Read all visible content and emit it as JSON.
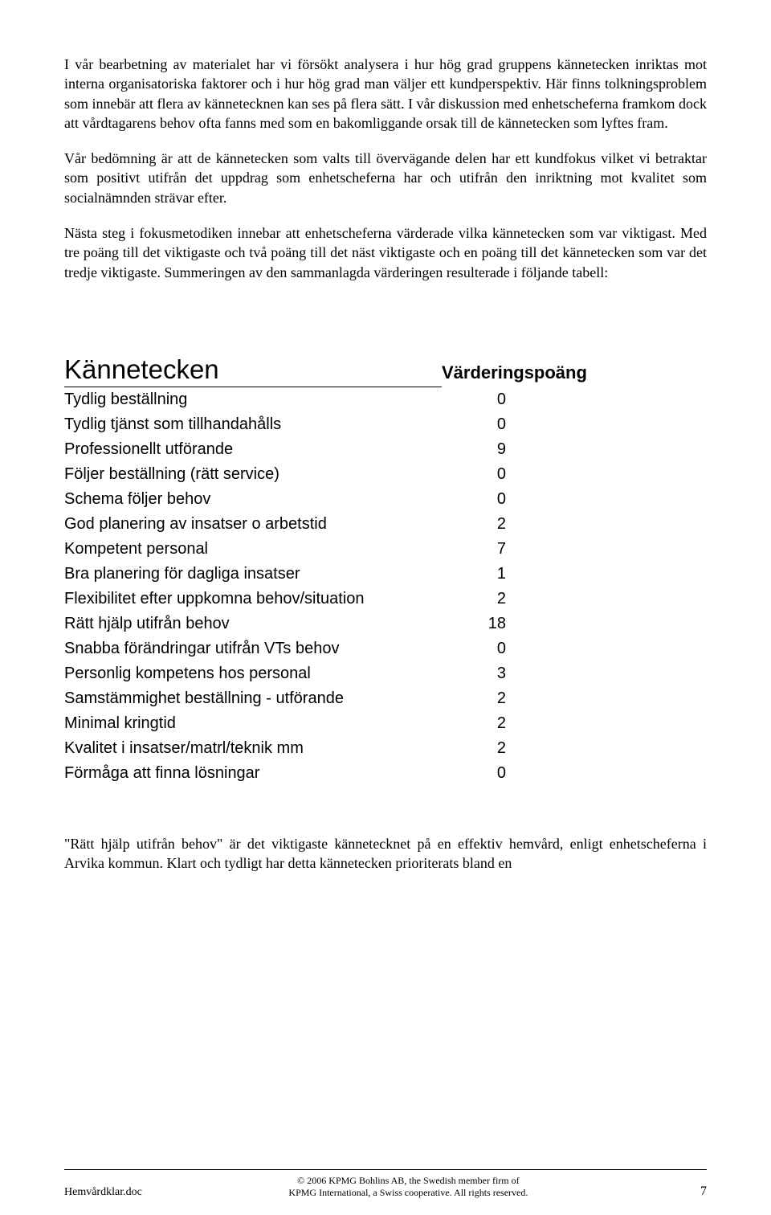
{
  "paragraphs": {
    "p1": "I vår bearbetning av materialet har vi försökt analysera i hur hög grad gruppens kännetecken inriktas mot interna organisatoriska faktorer och i hur hög grad man väljer ett kundperspektiv. Här finns tolkningsproblem som innebär att flera av kännetecknen kan ses på flera sätt. I vår diskussion med enhetscheferna framkom dock att vårdtagarens behov ofta fanns med som en bakomliggande orsak till de kännetecken som lyftes fram.",
    "p2": "Vår bedömning är att de kännetecken som valts till övervägande delen har ett kundfokus vilket vi betraktar som positivt utifrån det uppdrag som enhetscheferna har och utifrån den inriktning mot kvalitet som socialnämnden strävar efter.",
    "p3": "Nästa steg i fokusmetodiken innebar att enhetscheferna värderade vilka kännetecken som var viktigast. Med tre poäng till det viktigaste och två poäng till det näst viktigaste och en poäng till det kännetecken som var det tredje viktigaste. Summeringen av den sammanlagda värderingen resulterade i följande tabell:",
    "p4": "\"Rätt hjälp utifrån behov\" är det viktigaste kännetecknet på en effektiv hemvård, enligt enhetscheferna i Arvika kommun. Klart och tydligt har detta kännetecken prioriterats bland en"
  },
  "table": {
    "header_left": "Kännetecken",
    "header_right": "Värderingspoäng",
    "rows": [
      {
        "label": "Tydlig beställning",
        "value": "0"
      },
      {
        "label": "Tydlig tjänst som tillhandahålls",
        "value": "0"
      },
      {
        "label": "Professionellt utförande",
        "value": "9"
      },
      {
        "label": "Följer beställning (rätt service)",
        "value": "0"
      },
      {
        "label": "Schema följer behov",
        "value": "0"
      },
      {
        "label": "God planering av insatser o arbetstid",
        "value": "2"
      },
      {
        "label": "Kompetent personal",
        "value": "7"
      },
      {
        "label": "Bra planering för dagliga insatser",
        "value": "1"
      },
      {
        "label": "Flexibilitet efter uppkomna behov/situation",
        "value": "2"
      },
      {
        "label": "Rätt hjälp utifrån behov",
        "value": "18"
      },
      {
        "label": "Snabba förändringar utifrån VTs behov",
        "value": "0"
      },
      {
        "label": "Personlig kompetens hos personal",
        "value": "3"
      },
      {
        "label": "Samstämmighet beställning - utförande",
        "value": "2"
      },
      {
        "label": "Minimal kringtid",
        "value": "2"
      },
      {
        "label": "Kvalitet i insatser/matrl/teknik mm",
        "value": "2"
      },
      {
        "label": "Förmåga att finna lösningar",
        "value": "0"
      }
    ]
  },
  "footer": {
    "left": "Hemvårdklar.doc",
    "center_line1": "© 2006 KPMG Bohlins AB, the Swedish member firm of",
    "center_line2": "KPMG International, a Swiss cooperative. All rights reserved.",
    "page_number": "7"
  }
}
